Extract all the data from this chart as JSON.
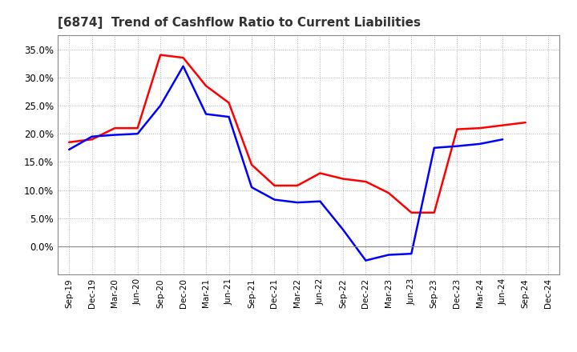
{
  "title": "[6874]  Trend of Cashflow Ratio to Current Liabilities",
  "x_labels": [
    "Sep-19",
    "Dec-19",
    "Mar-20",
    "Jun-20",
    "Sep-20",
    "Dec-20",
    "Mar-21",
    "Jun-21",
    "Sep-21",
    "Dec-21",
    "Mar-22",
    "Jun-22",
    "Sep-22",
    "Dec-22",
    "Mar-23",
    "Jun-23",
    "Sep-23",
    "Dec-23",
    "Mar-24",
    "Jun-24",
    "Sep-24",
    "Dec-24"
  ],
  "operating_cf": [
    0.185,
    0.19,
    0.21,
    0.21,
    0.34,
    0.335,
    0.285,
    0.255,
    0.145,
    0.108,
    0.108,
    0.13,
    0.12,
    0.115,
    0.095,
    0.06,
    0.06,
    0.208,
    0.21,
    0.215,
    0.22,
    null
  ],
  "free_cf": [
    0.172,
    0.195,
    0.198,
    0.2,
    0.25,
    0.32,
    0.235,
    0.23,
    0.105,
    0.083,
    0.078,
    0.08,
    0.03,
    -0.025,
    -0.015,
    -0.013,
    0.175,
    0.178,
    0.182,
    0.19,
    null,
    null
  ],
  "operating_color": "#ff0000",
  "free_color": "#0000ff",
  "ylim": [
    -0.05,
    0.375
  ],
  "yticks": [
    0.0,
    0.05,
    0.1,
    0.15,
    0.2,
    0.25,
    0.3,
    0.35
  ],
  "background_color": "#ffffff",
  "grid_color": "#b0b0b0",
  "title_fontsize": 11,
  "title_color": "#333333",
  "legend_fontsize": 9,
  "line_width": 1.8
}
